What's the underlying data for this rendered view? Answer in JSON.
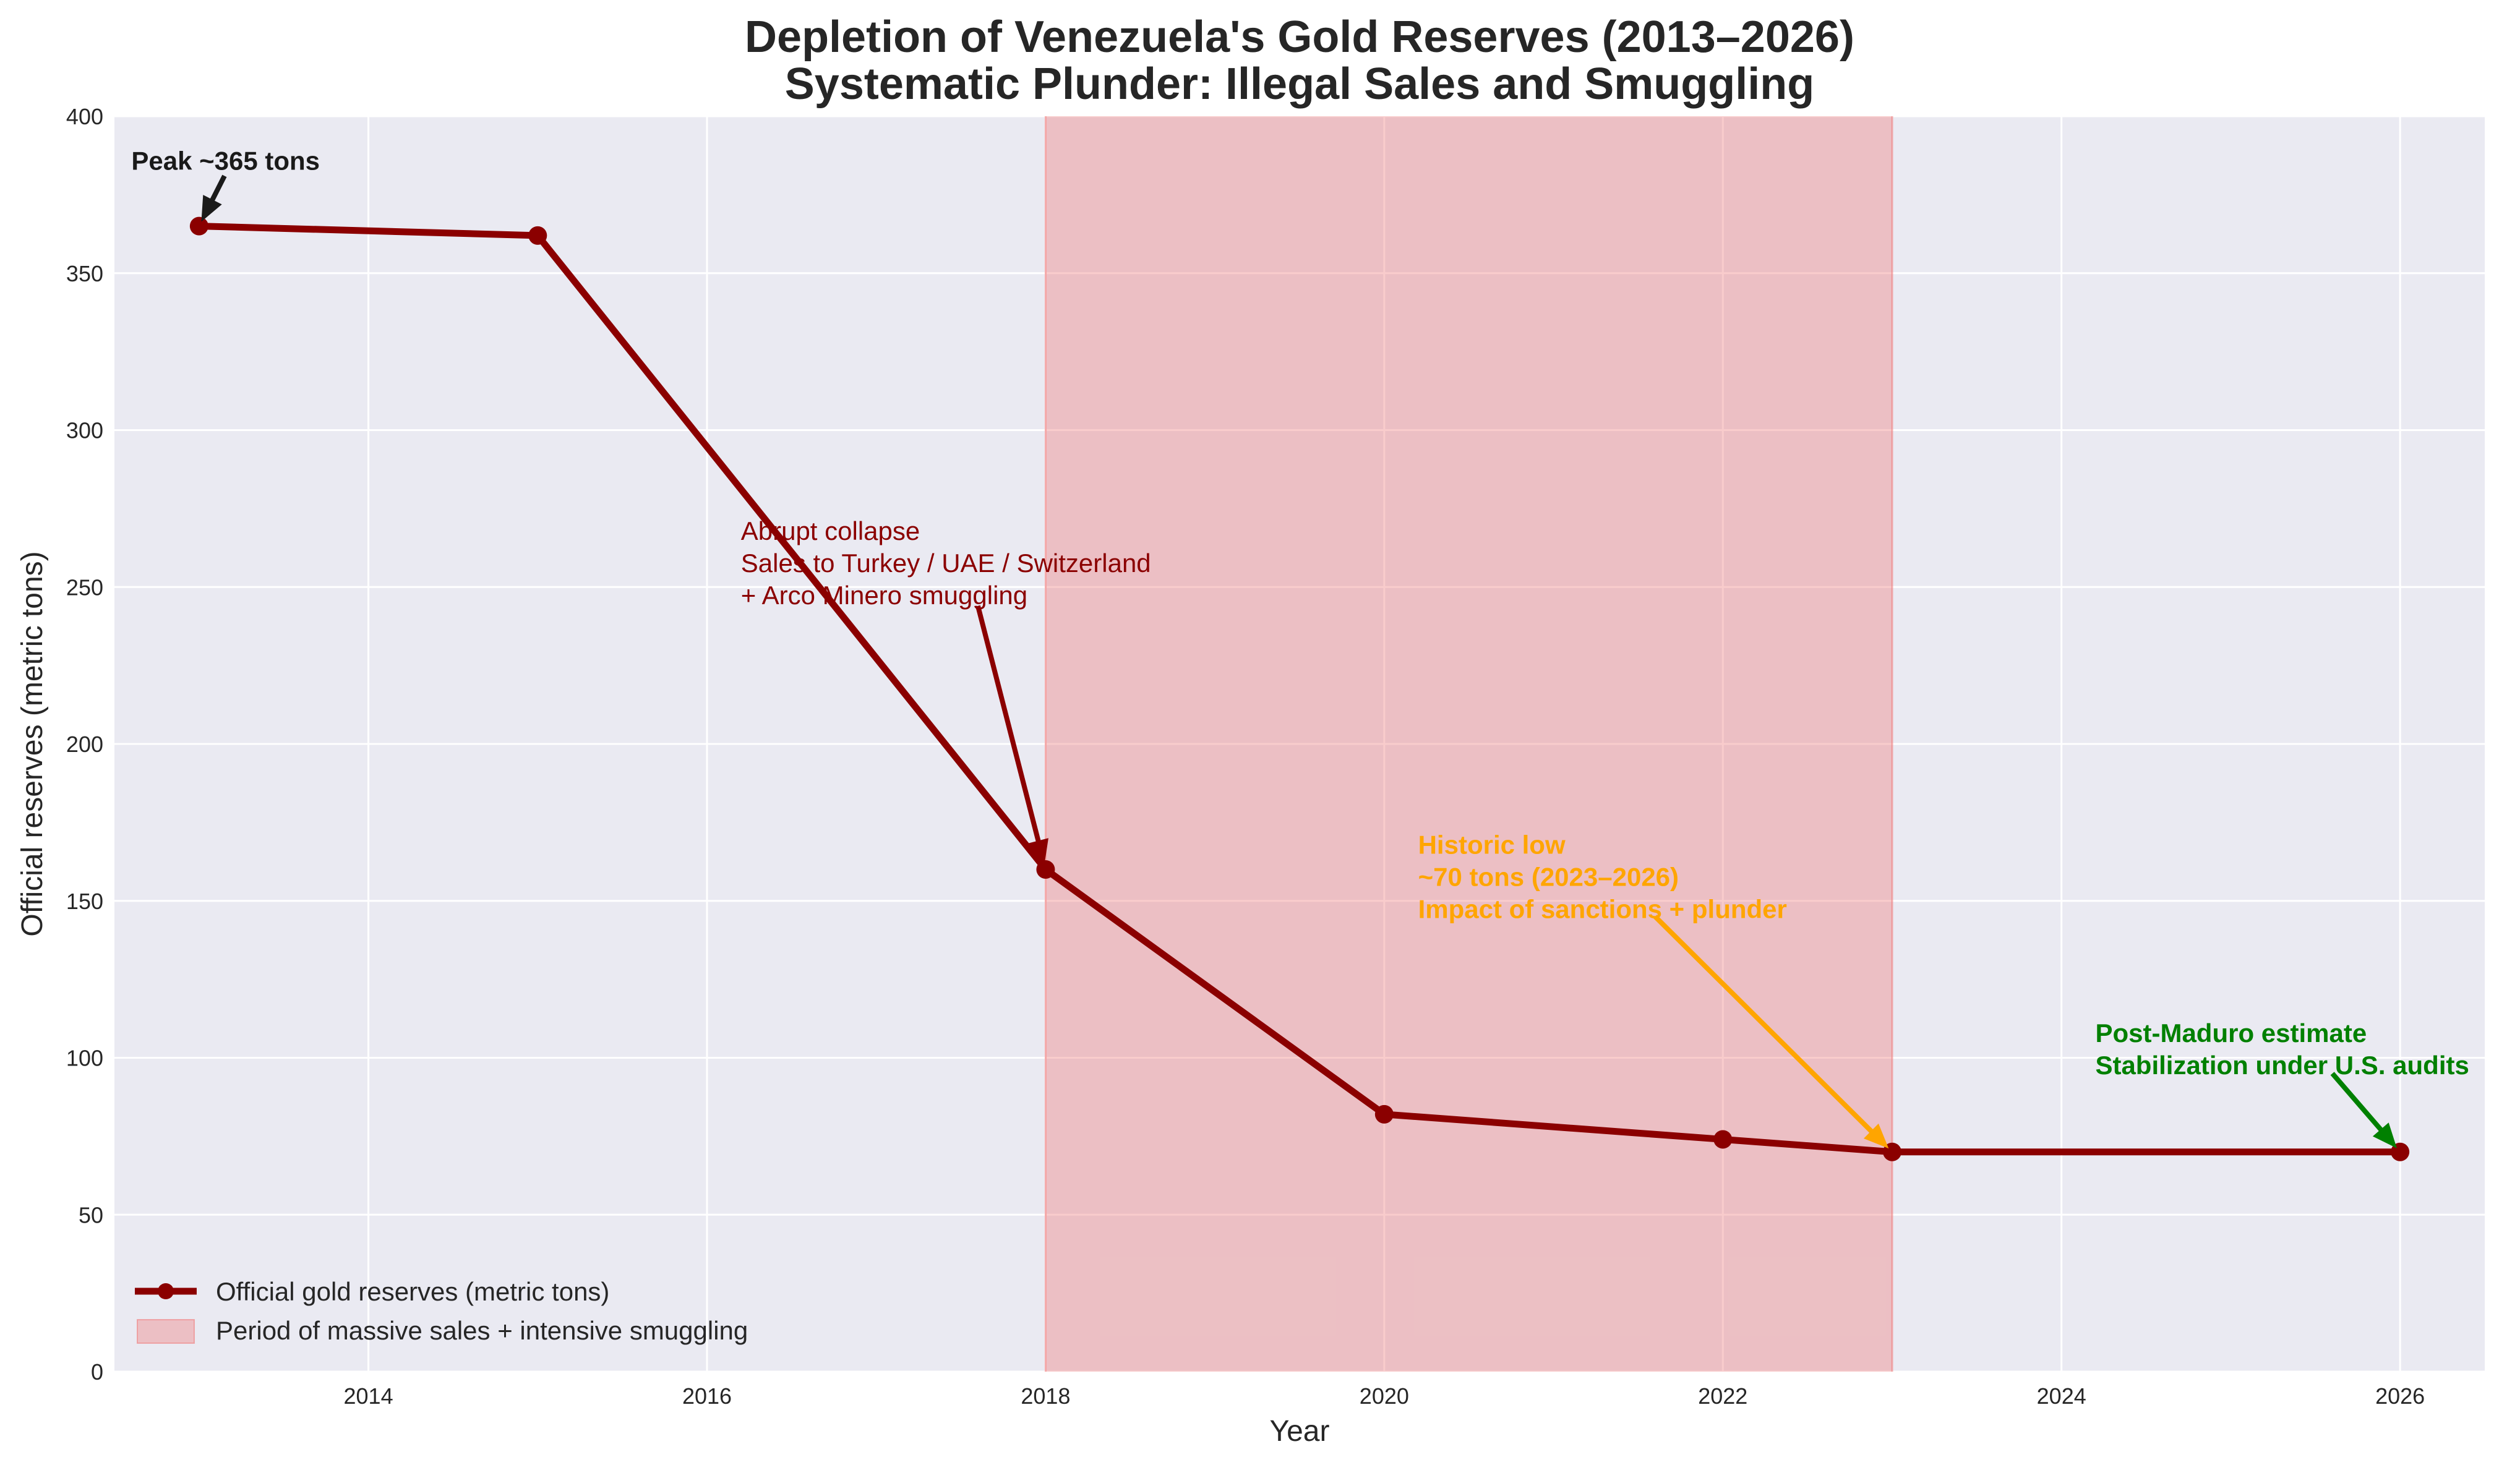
{
  "chart_data": {
    "type": "line",
    "title": "Depletion of Venezuela's Gold Reserves (2013–2026)",
    "subtitle": "Systematic Plunder: Illegal Sales and Smuggling",
    "xlabel": "Year",
    "ylabel": "Official reserves (metric tons)",
    "xlim": [
      2012.5,
      2026.5
    ],
    "ylim": [
      0,
      400
    ],
    "x_ticks": [
      2014,
      2016,
      2018,
      2020,
      2022,
      2024,
      2026
    ],
    "y_ticks": [
      0,
      50,
      100,
      150,
      200,
      250,
      300,
      350,
      400
    ],
    "grid": true,
    "legend_position": "lower-left",
    "series": [
      {
        "name": "Official gold reserves (metric tons)",
        "color": "#8b0000",
        "x": [
          2013,
          2015,
          2018,
          2020,
          2022,
          2023,
          2026
        ],
        "y": [
          365,
          362,
          160,
          82,
          74,
          70,
          70
        ]
      }
    ],
    "shaded_region": {
      "name": "Period of massive sales + intensive smuggling",
      "x_start": 2018,
      "x_end": 2023,
      "color": "#f08080"
    },
    "annotations": [
      {
        "lines": [
          "Peak ~365 tons"
        ],
        "color": "#1a1a1a",
        "bold": true,
        "text_x": 2012.6,
        "text_y": 383,
        "arrow_from": [
          2013.15,
          381
        ],
        "arrow_to": [
          2013.0,
          365
        ]
      },
      {
        "lines": [
          "Abrupt collapse",
          "Sales to Turkey / UAE / Switzerland",
          "+ Arco Minero smuggling"
        ],
        "color": "#8b0000",
        "bold": false,
        "text_x": 2016.2,
        "text_y": 265,
        "arrow_from": [
          2017.6,
          244
        ],
        "arrow_to": [
          2018.0,
          160
        ]
      },
      {
        "lines": [
          "Historic low",
          "~70 tons (2023–2026)",
          "Impact of sanctions + plunder"
        ],
        "color": "#ffa500",
        "bold": true,
        "text_x": 2020.2,
        "text_y": 165,
        "arrow_from": [
          2021.6,
          145
        ],
        "arrow_to": [
          2023.0,
          70
        ]
      },
      {
        "lines": [
          "Post-Maduro estimate",
          "Stabilization under U.S. audits"
        ],
        "color": "#008000",
        "bold": true,
        "text_x": 2024.2,
        "text_y": 105,
        "arrow_from": [
          2025.6,
          95
        ],
        "arrow_to": [
          2026.0,
          70
        ]
      }
    ]
  }
}
